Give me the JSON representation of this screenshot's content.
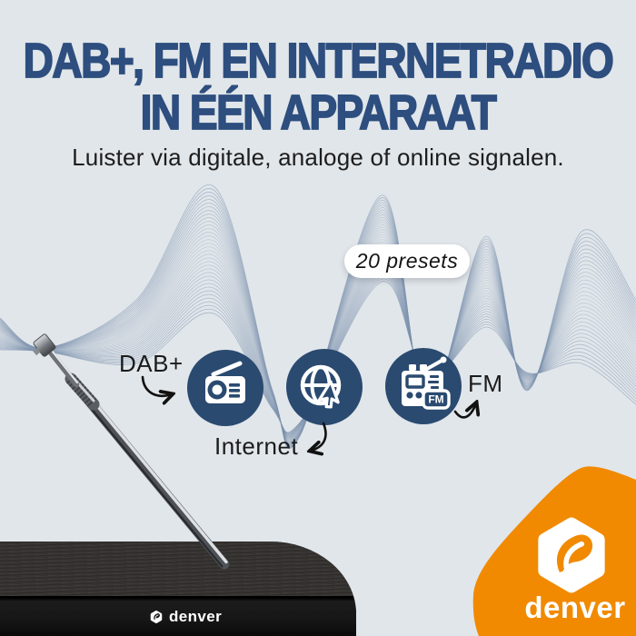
{
  "colors": {
    "background": "#e1e6ea",
    "headline": "#2d4e7e",
    "icon_circle": "#2a4a70",
    "accent_orange": "#f18a00",
    "wave_line": "#7e93af",
    "text_dark": "#1d1d1d"
  },
  "header": {
    "title_line1": "DAB+, FM EN INTERNETRADIO",
    "title_line2": "IN ÉÉN APPARAAT",
    "subtitle": "Luister via digitale, analoge of online signalen."
  },
  "badge": {
    "label": "20 presets"
  },
  "features": [
    {
      "label": "DAB+",
      "icon": "dab-radio-icon"
    },
    {
      "label": "Internet",
      "icon": "internet-globe-cursor-icon"
    },
    {
      "label": "FM",
      "icon": "fm-radio-icon",
      "icon_badge": "FM"
    }
  ],
  "brand": {
    "wordmark": "denver",
    "logo": "denver-hexagon-logo"
  },
  "device": {
    "front_label": "denver"
  }
}
